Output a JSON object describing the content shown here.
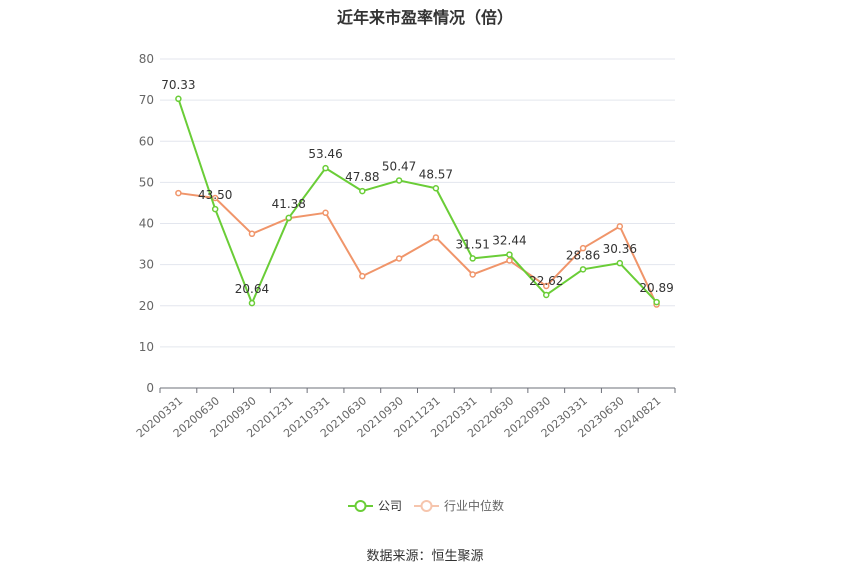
{
  "chart_data": {
    "type": "line",
    "title": "近年来市盈率情况（倍）",
    "source": "数据来源：恒生聚源",
    "categories": [
      "20200331",
      "20200630",
      "20200930",
      "20201231",
      "20210331",
      "20210630",
      "20210930",
      "20211231",
      "20220331",
      "20220630",
      "20220930",
      "20230331",
      "20230630",
      "20240821"
    ],
    "ylim": [
      0,
      80
    ],
    "yticks": [
      0,
      10,
      20,
      30,
      40,
      50,
      60,
      70,
      80
    ],
    "grid": true,
    "legend_position": "bottom",
    "series": [
      {
        "name": "公司",
        "color": "#6acd37",
        "values": [
          70.33,
          43.5,
          20.64,
          41.38,
          53.46,
          47.88,
          50.47,
          48.57,
          31.51,
          32.44,
          22.62,
          28.86,
          30.36,
          20.89
        ],
        "labels": [
          "70.33",
          "43.50",
          "20.64",
          "41.38",
          "53.46",
          "47.88",
          "50.47",
          "48.57",
          "31.51",
          "32.44",
          "22.62",
          "28.86",
          "30.36",
          "20.89"
        ]
      },
      {
        "name": "行业中位数",
        "color": "#f0956a",
        "values": [
          47.4,
          46.2,
          37.5,
          41.3,
          42.6,
          27.2,
          31.5,
          36.6,
          27.6,
          31.0,
          24.8,
          34.0,
          39.3,
          20.3
        ]
      }
    ]
  }
}
